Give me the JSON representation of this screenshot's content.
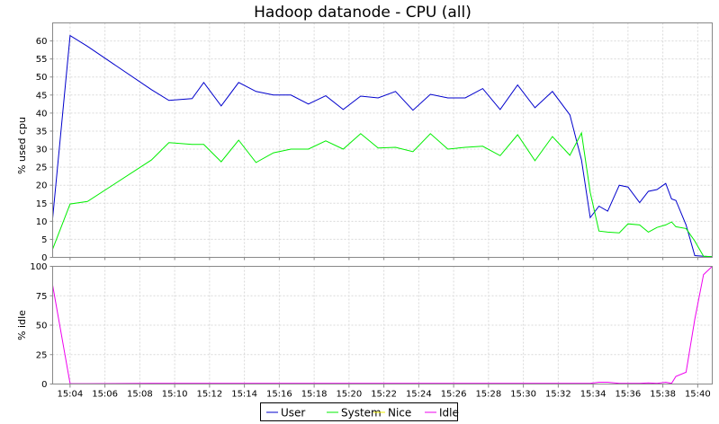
{
  "chart_data": [
    {
      "type": "line",
      "title": "Hadoop datanode - CPU (all)",
      "ylabel": "% used cpu",
      "ylim": [
        0,
        65
      ],
      "yticks": [
        0,
        5,
        10,
        15,
        20,
        25,
        30,
        35,
        40,
        45,
        50,
        55,
        60
      ],
      "grid": true,
      "series": [
        {
          "name": "User",
          "color": "#0000cc",
          "x": [
            "15:03:00",
            "15:04:00",
            "15:05:00",
            "15:08:40",
            "15:09:40",
            "15:11:00",
            "15:11:40",
            "15:12:40",
            "15:13:40",
            "15:14:40",
            "15:15:40",
            "15:16:40",
            "15:17:40",
            "15:18:40",
            "15:19:40",
            "15:20:40",
            "15:21:40",
            "15:22:40",
            "15:23:40",
            "15:24:40",
            "15:25:40",
            "15:26:40",
            "15:27:40",
            "15:28:40",
            "15:29:40",
            "15:30:40",
            "15:31:40",
            "15:32:40",
            "15:33:20",
            "15:33:50",
            "15:34:20",
            "15:34:50",
            "15:35:30",
            "15:36:00",
            "15:36:40",
            "15:37:10",
            "15:37:40",
            "15:38:10",
            "15:38:30",
            "15:38:45",
            "15:39:20",
            "15:39:50",
            "15:40:20",
            "15:40:50"
          ],
          "values": [
            10.8,
            61.5,
            58.5,
            46.5,
            43.5,
            44.0,
            48.5,
            42.0,
            48.5,
            46.0,
            45.0,
            45.0,
            42.5,
            44.8,
            41.0,
            44.7,
            44.2,
            46.0,
            40.8,
            45.2,
            44.2,
            44.2,
            46.8,
            41.0,
            47.8,
            41.5,
            46.0,
            39.5,
            27.0,
            11.0,
            14.2,
            12.8,
            20.0,
            19.5,
            15.2,
            18.3,
            18.8,
            20.5,
            16.2,
            15.8,
            9.0,
            0.5,
            0.3,
            0.2
          ]
        },
        {
          "name": "System",
          "color": "#00ee00",
          "x": [
            "15:03:00",
            "15:04:00",
            "15:05:00",
            "15:08:40",
            "15:09:40",
            "15:11:00",
            "15:11:40",
            "15:12:40",
            "15:13:40",
            "15:14:40",
            "15:15:40",
            "15:16:40",
            "15:17:40",
            "15:18:40",
            "15:19:40",
            "15:20:40",
            "15:21:40",
            "15:22:40",
            "15:23:40",
            "15:24:40",
            "15:25:40",
            "15:26:40",
            "15:27:40",
            "15:28:40",
            "15:29:40",
            "15:30:40",
            "15:31:40",
            "15:32:40",
            "15:33:20",
            "15:33:50",
            "15:34:20",
            "15:34:50",
            "15:35:30",
            "15:36:00",
            "15:36:40",
            "15:37:10",
            "15:37:40",
            "15:38:10",
            "15:38:30",
            "15:38:45",
            "15:39:20",
            "15:39:50",
            "15:40:20",
            "15:40:50"
          ],
          "values": [
            2.3,
            14.8,
            15.5,
            27.0,
            31.8,
            31.3,
            31.3,
            26.5,
            32.5,
            26.3,
            29.0,
            30.0,
            30.0,
            32.3,
            30.0,
            34.3,
            30.3,
            30.5,
            29.3,
            34.3,
            30.0,
            30.5,
            30.8,
            28.2,
            34.0,
            26.8,
            33.5,
            28.3,
            34.5,
            18.0,
            7.3,
            7.0,
            6.8,
            9.3,
            9.0,
            7.0,
            8.3,
            9.0,
            9.8,
            8.5,
            8.0,
            4.5,
            0.3,
            0.2
          ]
        },
        {
          "name": "Nice",
          "color": "#eeee00",
          "x": [
            "15:03:00",
            "15:40:50"
          ],
          "values": [
            0,
            0
          ]
        }
      ]
    },
    {
      "type": "line",
      "ylabel": "% idle",
      "ylim": [
        0,
        100
      ],
      "yticks": [
        0,
        25,
        50,
        75,
        100
      ],
      "grid": true,
      "xticks": [
        "15:04",
        "15:06",
        "15:08",
        "15:10",
        "15:12",
        "15:14",
        "15:16",
        "15:18",
        "15:20",
        "15:22",
        "15:24",
        "15:26",
        "15:28",
        "15:30",
        "15:32",
        "15:34",
        "15:36",
        "15:38",
        "15:40"
      ],
      "series": [
        {
          "name": "Idle",
          "color": "#ee00ee",
          "x": [
            "15:03:00",
            "15:04:00",
            "15:05:00",
            "15:08:40",
            "15:09:40",
            "15:11:00",
            "15:11:40",
            "15:12:40",
            "15:13:40",
            "15:14:40",
            "15:15:40",
            "15:16:40",
            "15:17:40",
            "15:18:40",
            "15:19:40",
            "15:20:40",
            "15:21:40",
            "15:22:40",
            "15:23:40",
            "15:24:40",
            "15:25:40",
            "15:26:40",
            "15:27:40",
            "15:28:40",
            "15:29:40",
            "15:30:40",
            "15:31:40",
            "15:32:40",
            "15:33:20",
            "15:33:50",
            "15:34:20",
            "15:34:50",
            "15:35:30",
            "15:36:00",
            "15:36:40",
            "15:37:10",
            "15:37:40",
            "15:38:10",
            "15:38:30",
            "15:38:45",
            "15:39:20",
            "15:39:50",
            "15:40:20",
            "15:40:50"
          ],
          "values": [
            84,
            0.3,
            0.3,
            0.5,
            0.5,
            0.5,
            0.5,
            0.5,
            0.5,
            0.5,
            0.5,
            0.5,
            0.5,
            0.5,
            0.5,
            0.5,
            0.5,
            0.5,
            0.5,
            0.5,
            0.5,
            0.5,
            0.5,
            0.5,
            0.5,
            0.5,
            0.5,
            0.5,
            0.5,
            0.5,
            1.5,
            1.5,
            0.5,
            0.5,
            0.5,
            1.0,
            0.5,
            1.5,
            0.5,
            6.5,
            10,
            55,
            93,
            100
          ]
        }
      ]
    }
  ],
  "legend": {
    "placement": "bottom-center",
    "items": [
      {
        "name": "User",
        "color": "#0000cc"
      },
      {
        "name": "System",
        "color": "#00ee00"
      },
      {
        "name": "Nice",
        "color": "#eeee00"
      },
      {
        "name": "Idle",
        "color": "#ee00ee"
      }
    ]
  }
}
